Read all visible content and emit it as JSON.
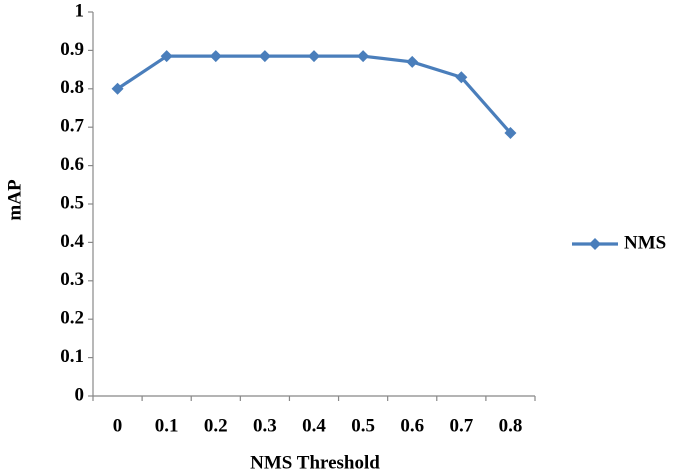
{
  "chart_data": {
    "type": "line",
    "x_label": "NMS Threshold",
    "y_label": "mAP",
    "categories": [
      "0",
      "0.1",
      "0.2",
      "0.3",
      "0.4",
      "0.5",
      "0.6",
      "0.7",
      "0.8"
    ],
    "series": [
      {
        "name": "NMS",
        "color": "#4a7ebb",
        "values": [
          0.8,
          0.885,
          0.885,
          0.885,
          0.885,
          0.885,
          0.87,
          0.83,
          0.685
        ]
      }
    ],
    "ylim": [
      0,
      1
    ],
    "yticks": [
      0,
      0.1,
      0.2,
      0.3,
      0.4,
      0.5,
      0.6,
      0.7,
      0.8,
      0.9,
      1
    ],
    "grid": false,
    "legend": "right"
  }
}
